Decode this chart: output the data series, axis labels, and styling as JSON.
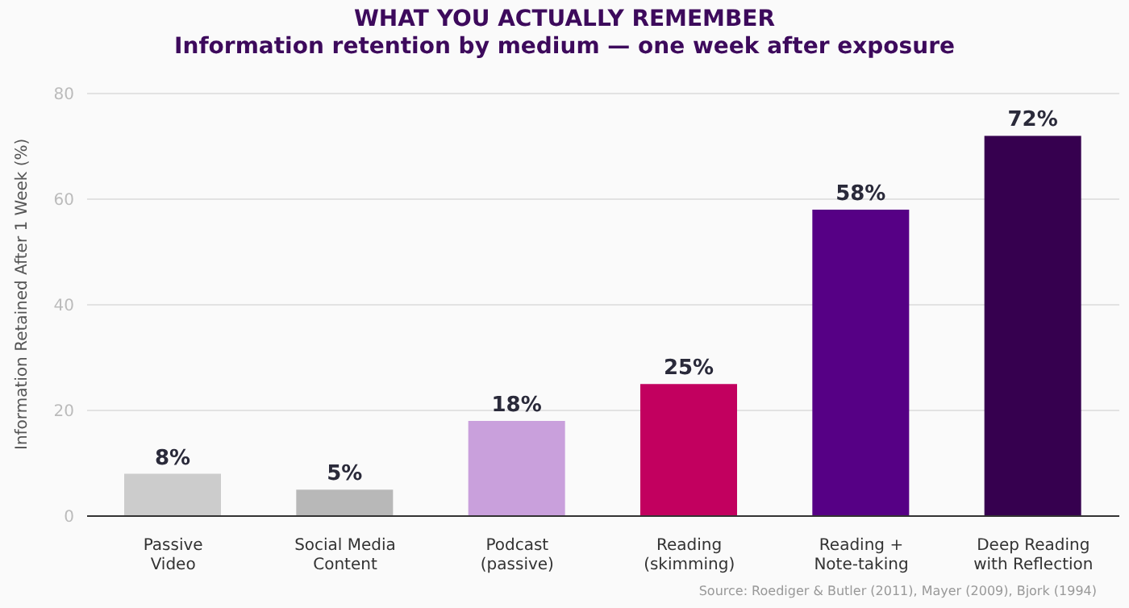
{
  "chart_data": {
    "type": "bar",
    "title": "WHAT YOU ACTUALLY REMEMBER",
    "subtitle": "Information retention by medium — one week after exposure",
    "ylabel": "Information Retained After 1 Week (%)",
    "categories": [
      "Passive Video",
      "Social Media Content",
      "Podcast (passive)",
      "Reading (skimming)",
      "Reading + Note-taking",
      "Deep Reading with Reflection"
    ],
    "values": [
      8,
      5,
      18,
      25,
      58,
      72
    ],
    "colors": [
      "#cccccc",
      "#b8b8b8",
      "#c9a0dc",
      "#c2005f",
      "#560085",
      "#36004f"
    ],
    "value_labels": [
      "8%",
      "5%",
      "18%",
      "25%",
      "58%",
      "72%"
    ],
    "ylim": [
      0,
      80
    ],
    "yticks": [
      0,
      20,
      40,
      60,
      80
    ],
    "grid": "y",
    "legend": false,
    "annotations": [
      "Source: Roediger & Butler (2011), Mayer (2009), Bjork (1994)"
    ]
  }
}
